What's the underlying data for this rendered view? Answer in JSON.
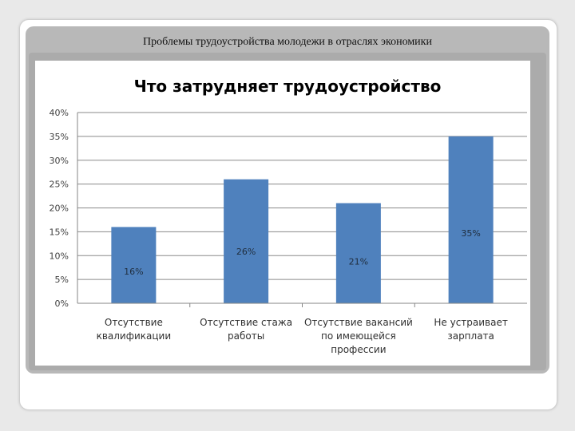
{
  "slide": {
    "title": "Проблемы трудоустройства молодежи в отраслях экономики"
  },
  "chart_data": {
    "type": "bar",
    "title": "Что затрудняет трудоустройство",
    "xlabel": "",
    "ylabel": "",
    "ylim": [
      0,
      40
    ],
    "yticks": [
      "0%",
      "5%",
      "10%",
      "15%",
      "20%",
      "25%",
      "30%",
      "35%",
      "40%"
    ],
    "grid": true,
    "categories": [
      [
        "Отсутствие",
        "квалификации"
      ],
      [
        "Отсутствие стажа",
        "работы"
      ],
      [
        "Отсутствие вакансий",
        "по имеющейся",
        "профессии"
      ],
      [
        "Не устраивает",
        "зарплата"
      ]
    ],
    "values": [
      16,
      26,
      21,
      35
    ],
    "data_labels": [
      "16%",
      "26%",
      "21%",
      "35%"
    ],
    "bar_color": "#4f81bd"
  }
}
